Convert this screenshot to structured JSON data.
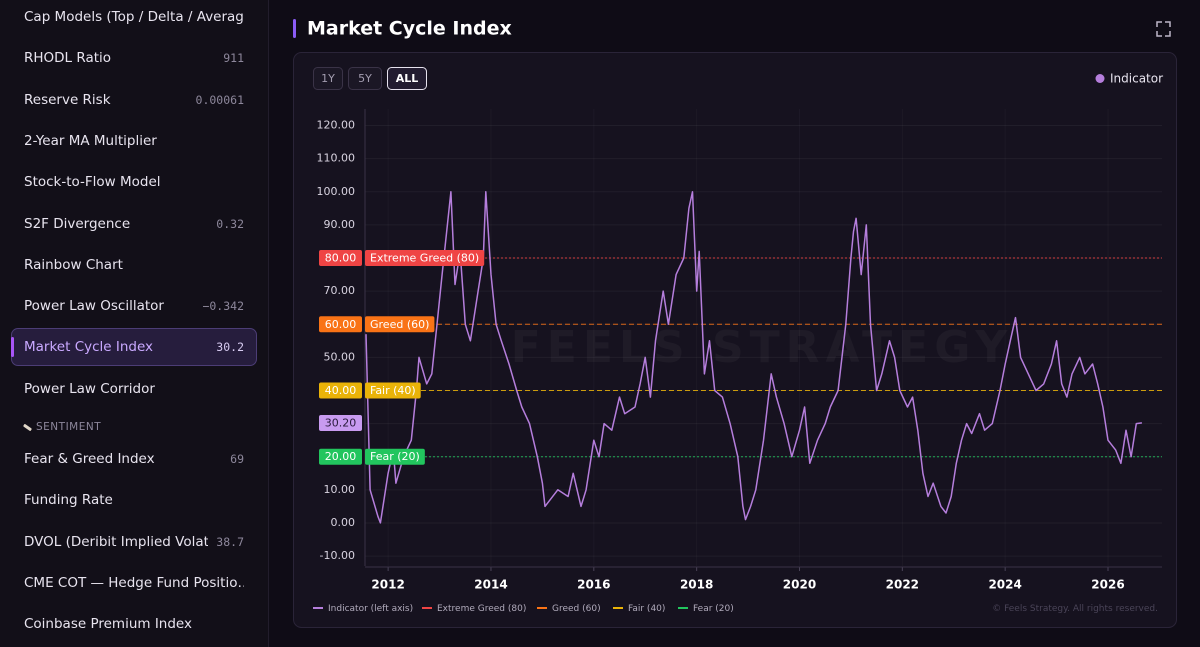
{
  "sidebar": {
    "items": [
      {
        "label": "Cap Models (Top / Delta / Averag…"
      },
      {
        "label": "RHODL Ratio",
        "value": "911"
      },
      {
        "label": "Reserve Risk",
        "value": "0.00061"
      },
      {
        "label": "2-Year MA Multiplier"
      },
      {
        "label": "Stock-to-Flow Model"
      },
      {
        "label": "S2F Divergence",
        "value": "0.32"
      },
      {
        "label": "Rainbow Chart"
      },
      {
        "label": "Power Law Oscillator",
        "value": "−0.342"
      },
      {
        "label": "Market Cycle Index",
        "value": "30.2",
        "active": true
      },
      {
        "label": "Power Law Corridor"
      },
      {
        "section": "SENTIMENT"
      },
      {
        "label": "Fear & Greed Index",
        "value": "69"
      },
      {
        "label": "Funding Rate"
      },
      {
        "label": "DVOL (Deribit Implied Volatil…",
        "value": "38.7"
      },
      {
        "label": "CME COT — Hedge Fund Positio…"
      },
      {
        "label": "Coinbase Premium Index"
      }
    ]
  },
  "header": {
    "title": "Market Cycle Index"
  },
  "chart_data": {
    "type": "line",
    "range_buttons": [
      "1Y",
      "5Y",
      "ALL"
    ],
    "active_range_index": 2,
    "watermark": "FEELS STRATEGY",
    "copyright": "© Feels Strategy. All rights reserved.",
    "axis_legend": "Indicator (left axis)",
    "x": [
      2011.57,
      2011.65,
      2011.8,
      2011.85,
      2012.0,
      2012.1,
      2012.15,
      2012.3,
      2012.45,
      2012.55,
      2012.6,
      2012.75,
      2012.85,
      2012.95,
      2013.05,
      2013.22,
      2013.3,
      2013.4,
      2013.5,
      2013.6,
      2013.75,
      2013.85,
      2013.9,
      2014.0,
      2014.1,
      2014.2,
      2014.35,
      2014.5,
      2014.6,
      2014.75,
      2014.9,
      2015.0,
      2015.05,
      2015.3,
      2015.5,
      2015.6,
      2015.75,
      2015.85,
      2016.0,
      2016.1,
      2016.2,
      2016.35,
      2016.5,
      2016.6,
      2016.8,
      2016.9,
      2017.0,
      2017.1,
      2017.2,
      2017.35,
      2017.45,
      2017.6,
      2017.75,
      2017.85,
      2017.92,
      2018.0,
      2018.05,
      2018.15,
      2018.25,
      2018.35,
      2018.5,
      2018.65,
      2018.8,
      2018.9,
      2018.95,
      2019.05,
      2019.15,
      2019.3,
      2019.45,
      2019.55,
      2019.7,
      2019.85,
      2020.0,
      2020.1,
      2020.2,
      2020.35,
      2020.5,
      2020.6,
      2020.75,
      2020.9,
      2021.0,
      2021.05,
      2021.1,
      2021.2,
      2021.3,
      2021.38,
      2021.5,
      2021.6,
      2021.75,
      2021.85,
      2021.95,
      2022.1,
      2022.2,
      2022.3,
      2022.4,
      2022.5,
      2022.6,
      2022.75,
      2022.85,
      2022.95,
      2023.05,
      2023.15,
      2023.25,
      2023.35,
      2023.5,
      2023.6,
      2023.75,
      2023.9,
      2024.0,
      2024.1,
      2024.2,
      2024.3,
      2024.45,
      2024.6,
      2024.75,
      2024.9,
      2025.0,
      2025.1,
      2025.2,
      2025.3,
      2025.45,
      2025.55,
      2025.7,
      2025.8,
      2025.9,
      2026.0,
      2026.15,
      2026.25,
      2026.35,
      2026.45,
      2026.55,
      2026.66
    ],
    "series": [
      {
        "name": "Indicator",
        "color": "#b57edc",
        "values": [
          57,
          10,
          2,
          0,
          15,
          22,
          12,
          20,
          25,
          40,
          50,
          42,
          45,
          60,
          75,
          100,
          72,
          82,
          60,
          55,
          70,
          80,
          100,
          75,
          60,
          55,
          48,
          40,
          35,
          30,
          20,
          12,
          5,
          10,
          8,
          15,
          5,
          10,
          25,
          20,
          30,
          28,
          38,
          33,
          35,
          42,
          50,
          38,
          55,
          70,
          60,
          75,
          80,
          95,
          100,
          70,
          82,
          45,
          55,
          40,
          38,
          30,
          20,
          5,
          1,
          5,
          10,
          25,
          45,
          38,
          30,
          20,
          28,
          35,
          18,
          25,
          30,
          35,
          40,
          60,
          80,
          88,
          92,
          75,
          90,
          60,
          40,
          45,
          55,
          50,
          40,
          35,
          38,
          28,
          15,
          8,
          12,
          5,
          3,
          8,
          18,
          25,
          30,
          27,
          33,
          28,
          30,
          40,
          48,
          55,
          62,
          50,
          45,
          40,
          42,
          48,
          55,
          42,
          38,
          45,
          50,
          45,
          48,
          42,
          35,
          25,
          22,
          18,
          28,
          20,
          30,
          30.2
        ]
      }
    ],
    "current_value": 30.2,
    "current_value_label": "30.20",
    "reference_lines": [
      {
        "name": "Extreme Greed (80)",
        "value": 80,
        "value_label": "80.00",
        "color": "#ef4444",
        "dash": "2 2"
      },
      {
        "name": "Greed (60)",
        "value": 60,
        "value_label": "60.00",
        "color": "#f97316",
        "dash": "5 3"
      },
      {
        "name": "Fair (40)",
        "value": 40,
        "value_label": "40.00",
        "color": "#eab308",
        "dash": "5 3"
      },
      {
        "name": "Fear (20)",
        "value": 20,
        "value_label": "20.00",
        "color": "#22c55e",
        "dash": "2 2"
      }
    ],
    "xlim": [
      2011.55,
      2027.05
    ],
    "ylim": [
      -13,
      125
    ],
    "xticks": [
      2012,
      2014,
      2016,
      2018,
      2020,
      2022,
      2024,
      2026
    ],
    "yticks": [
      {
        "value": -10,
        "label": "-10.00"
      },
      {
        "value": 0,
        "label": "0.00"
      },
      {
        "value": 10,
        "label": "10.00"
      },
      {
        "value": 20,
        "label": "20.00"
      },
      {
        "value": 30,
        "label": "30.00"
      },
      {
        "value": 40,
        "label": "40.00"
      },
      {
        "value": 50,
        "label": "50.00"
      },
      {
        "value": 60,
        "label": "60.00"
      },
      {
        "value": 70,
        "label": "70.00"
      },
      {
        "value": 80,
        "label": "80.00"
      },
      {
        "value": 90,
        "label": "90.00"
      },
      {
        "value": 100,
        "label": "100.00"
      },
      {
        "value": 110,
        "label": "110.00"
      },
      {
        "value": 120,
        "label": "120.00"
      }
    ],
    "grid": true
  }
}
